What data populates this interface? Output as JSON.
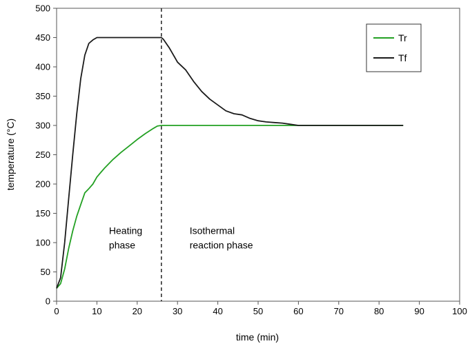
{
  "chart_data": {
    "type": "line",
    "title": "",
    "xlabel": "time (min)",
    "ylabel": "temperature (°C)",
    "xlim": [
      0,
      100
    ],
    "ylim": [
      0,
      500
    ],
    "x_ticks": [
      0,
      10,
      20,
      30,
      40,
      50,
      60,
      70,
      80,
      90,
      100
    ],
    "y_ticks": [
      0,
      50,
      100,
      150,
      200,
      250,
      300,
      350,
      400,
      450,
      500
    ],
    "grid": false,
    "legend_position": "top-right",
    "phase_divider_x": 26,
    "annotations": [
      {
        "lines": [
          "Heating",
          "phase"
        ],
        "x": 13,
        "y": 115
      },
      {
        "lines": [
          "Isothermal",
          "reaction phase"
        ],
        "x": 33,
        "y": 115
      }
    ],
    "series": [
      {
        "name": "Tr",
        "color": "#22a022",
        "x": [
          0,
          1,
          2,
          3,
          4,
          5,
          6,
          7,
          8,
          9,
          10,
          11,
          12,
          14,
          16,
          18,
          20,
          22,
          24,
          25,
          26,
          30,
          40,
          50,
          60,
          70,
          80,
          86
        ],
        "y": [
          22,
          30,
          55,
          90,
          120,
          145,
          165,
          185,
          192,
          200,
          212,
          220,
          228,
          242,
          254,
          265,
          276,
          286,
          295,
          299,
          300,
          300,
          300,
          300,
          300,
          300,
          300,
          300
        ]
      },
      {
        "name": "Tf",
        "color": "#1a1a1a",
        "x": [
          0,
          1,
          2,
          3,
          4,
          5,
          6,
          7,
          8,
          9,
          10,
          11,
          12,
          15,
          20,
          25,
          26,
          26.5,
          28,
          30,
          32,
          34,
          36,
          38,
          40,
          42,
          44,
          46,
          48,
          50,
          52,
          54,
          56,
          58,
          60,
          65,
          70,
          80,
          86
        ],
        "y": [
          22,
          40,
          100,
          175,
          250,
          320,
          380,
          420,
          440,
          446,
          450,
          450,
          450,
          450,
          450,
          450,
          450,
          447,
          432,
          408,
          395,
          375,
          358,
          345,
          335,
          325,
          320,
          318,
          312,
          308,
          306,
          305,
          304,
          302,
          300,
          300,
          300,
          300,
          300
        ]
      }
    ]
  }
}
